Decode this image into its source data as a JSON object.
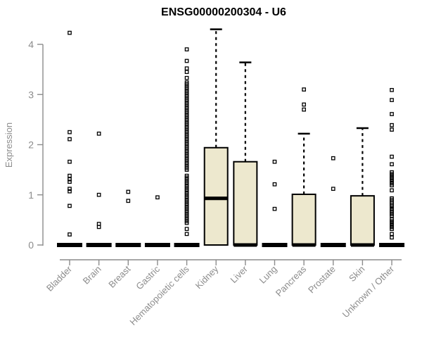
{
  "title": "ENSG00000200304 - U6",
  "ylabel": "Expression",
  "colors": {
    "box_fill": "#EDE8CE",
    "box_stroke": "#000000",
    "axis_gray": "#8C8C8C",
    "background": "#FFFFFF"
  },
  "chart_data": {
    "type": "boxplot",
    "title": "ENSG00000200304 - U6",
    "xlabel": "",
    "ylabel": "Expression",
    "ylim": [
      0,
      4.35
    ],
    "yticks": [
      0,
      1,
      2,
      3,
      4
    ],
    "grid": false,
    "legend": false,
    "categories": [
      {
        "label": "Bladder",
        "q1": 0,
        "median": 0,
        "q3": 0,
        "whisker_low": 0,
        "whisker_high": 0,
        "outliers": [
          4.23,
          2.25,
          2.11,
          1.66,
          1.38,
          1.31,
          1.26,
          1.12,
          1.07,
          0.78,
          0.21
        ],
        "outlier_ranges": []
      },
      {
        "label": "Brain",
        "q1": 0,
        "median": 0,
        "q3": 0,
        "whisker_low": 0,
        "whisker_high": 0,
        "outliers": [
          2.22,
          1.0,
          0.42,
          0.36
        ],
        "outlier_ranges": []
      },
      {
        "label": "Breast",
        "q1": 0,
        "median": 0,
        "q3": 0,
        "whisker_low": 0,
        "whisker_high": 0,
        "outliers": [
          1.06,
          0.88
        ],
        "outlier_ranges": []
      },
      {
        "label": "Gastric",
        "q1": 0,
        "median": 0,
        "q3": 0,
        "whisker_low": 0,
        "whisker_high": 0,
        "outliers": [
          0.95
        ],
        "outlier_ranges": []
      },
      {
        "label": "Hematopoietic cells",
        "q1": 0,
        "median": 0,
        "q3": 0,
        "whisker_low": 0,
        "whisker_high": 0,
        "outliers": [
          3.9,
          3.67,
          3.52,
          3.45,
          3.33,
          0.32,
          0.22
        ],
        "outlier_ranges": [
          {
            "from": 3.24,
            "to": 1.5,
            "count": 52
          },
          {
            "from": 1.38,
            "to": 0.44,
            "count": 28
          }
        ]
      },
      {
        "label": "Kidney",
        "q1": 0,
        "median": 0.93,
        "q3": 1.94,
        "whisker_low": 0,
        "whisker_high": 4.3,
        "outliers": [],
        "outlier_ranges": []
      },
      {
        "label": "Liver",
        "q1": 0,
        "median": 0,
        "q3": 1.66,
        "whisker_low": 0,
        "whisker_high": 3.64,
        "outliers": [],
        "outlier_ranges": []
      },
      {
        "label": "Lung",
        "q1": 0,
        "median": 0,
        "q3": 0,
        "whisker_low": 0,
        "whisker_high": 0,
        "outliers": [
          1.66,
          1.21,
          0.72
        ],
        "outlier_ranges": []
      },
      {
        "label": "Pancreas",
        "q1": 0,
        "median": 0,
        "q3": 1.01,
        "whisker_low": 0,
        "whisker_high": 2.22,
        "outliers": [
          3.1,
          2.8,
          2.7
        ],
        "outlier_ranges": []
      },
      {
        "label": "Prostate",
        "q1": 0,
        "median": 0,
        "q3": 0,
        "whisker_low": 0,
        "whisker_high": 0,
        "outliers": [
          1.73,
          1.12
        ],
        "outlier_ranges": []
      },
      {
        "label": "Skin",
        "q1": 0,
        "median": 0,
        "q3": 0.98,
        "whisker_low": 0,
        "whisker_high": 2.33,
        "outliers": [],
        "outlier_ranges": []
      },
      {
        "label": "Unknown / Other",
        "q1": 0,
        "median": 0,
        "q3": 0,
        "whisker_low": 0,
        "whisker_high": 0,
        "outliers": [
          3.09,
          2.89,
          2.61,
          2.39,
          2.3,
          1.76,
          1.61,
          1.09,
          0.22,
          0.15
        ],
        "outlier_ranges": [
          {
            "from": 1.45,
            "to": 1.19,
            "count": 8
          },
          {
            "from": 0.93,
            "to": 0.77,
            "count": 6
          },
          {
            "from": 0.72,
            "to": 0.58,
            "count": 5
          },
          {
            "from": 0.51,
            "to": 0.32,
            "count": 6
          }
        ]
      }
    ]
  }
}
